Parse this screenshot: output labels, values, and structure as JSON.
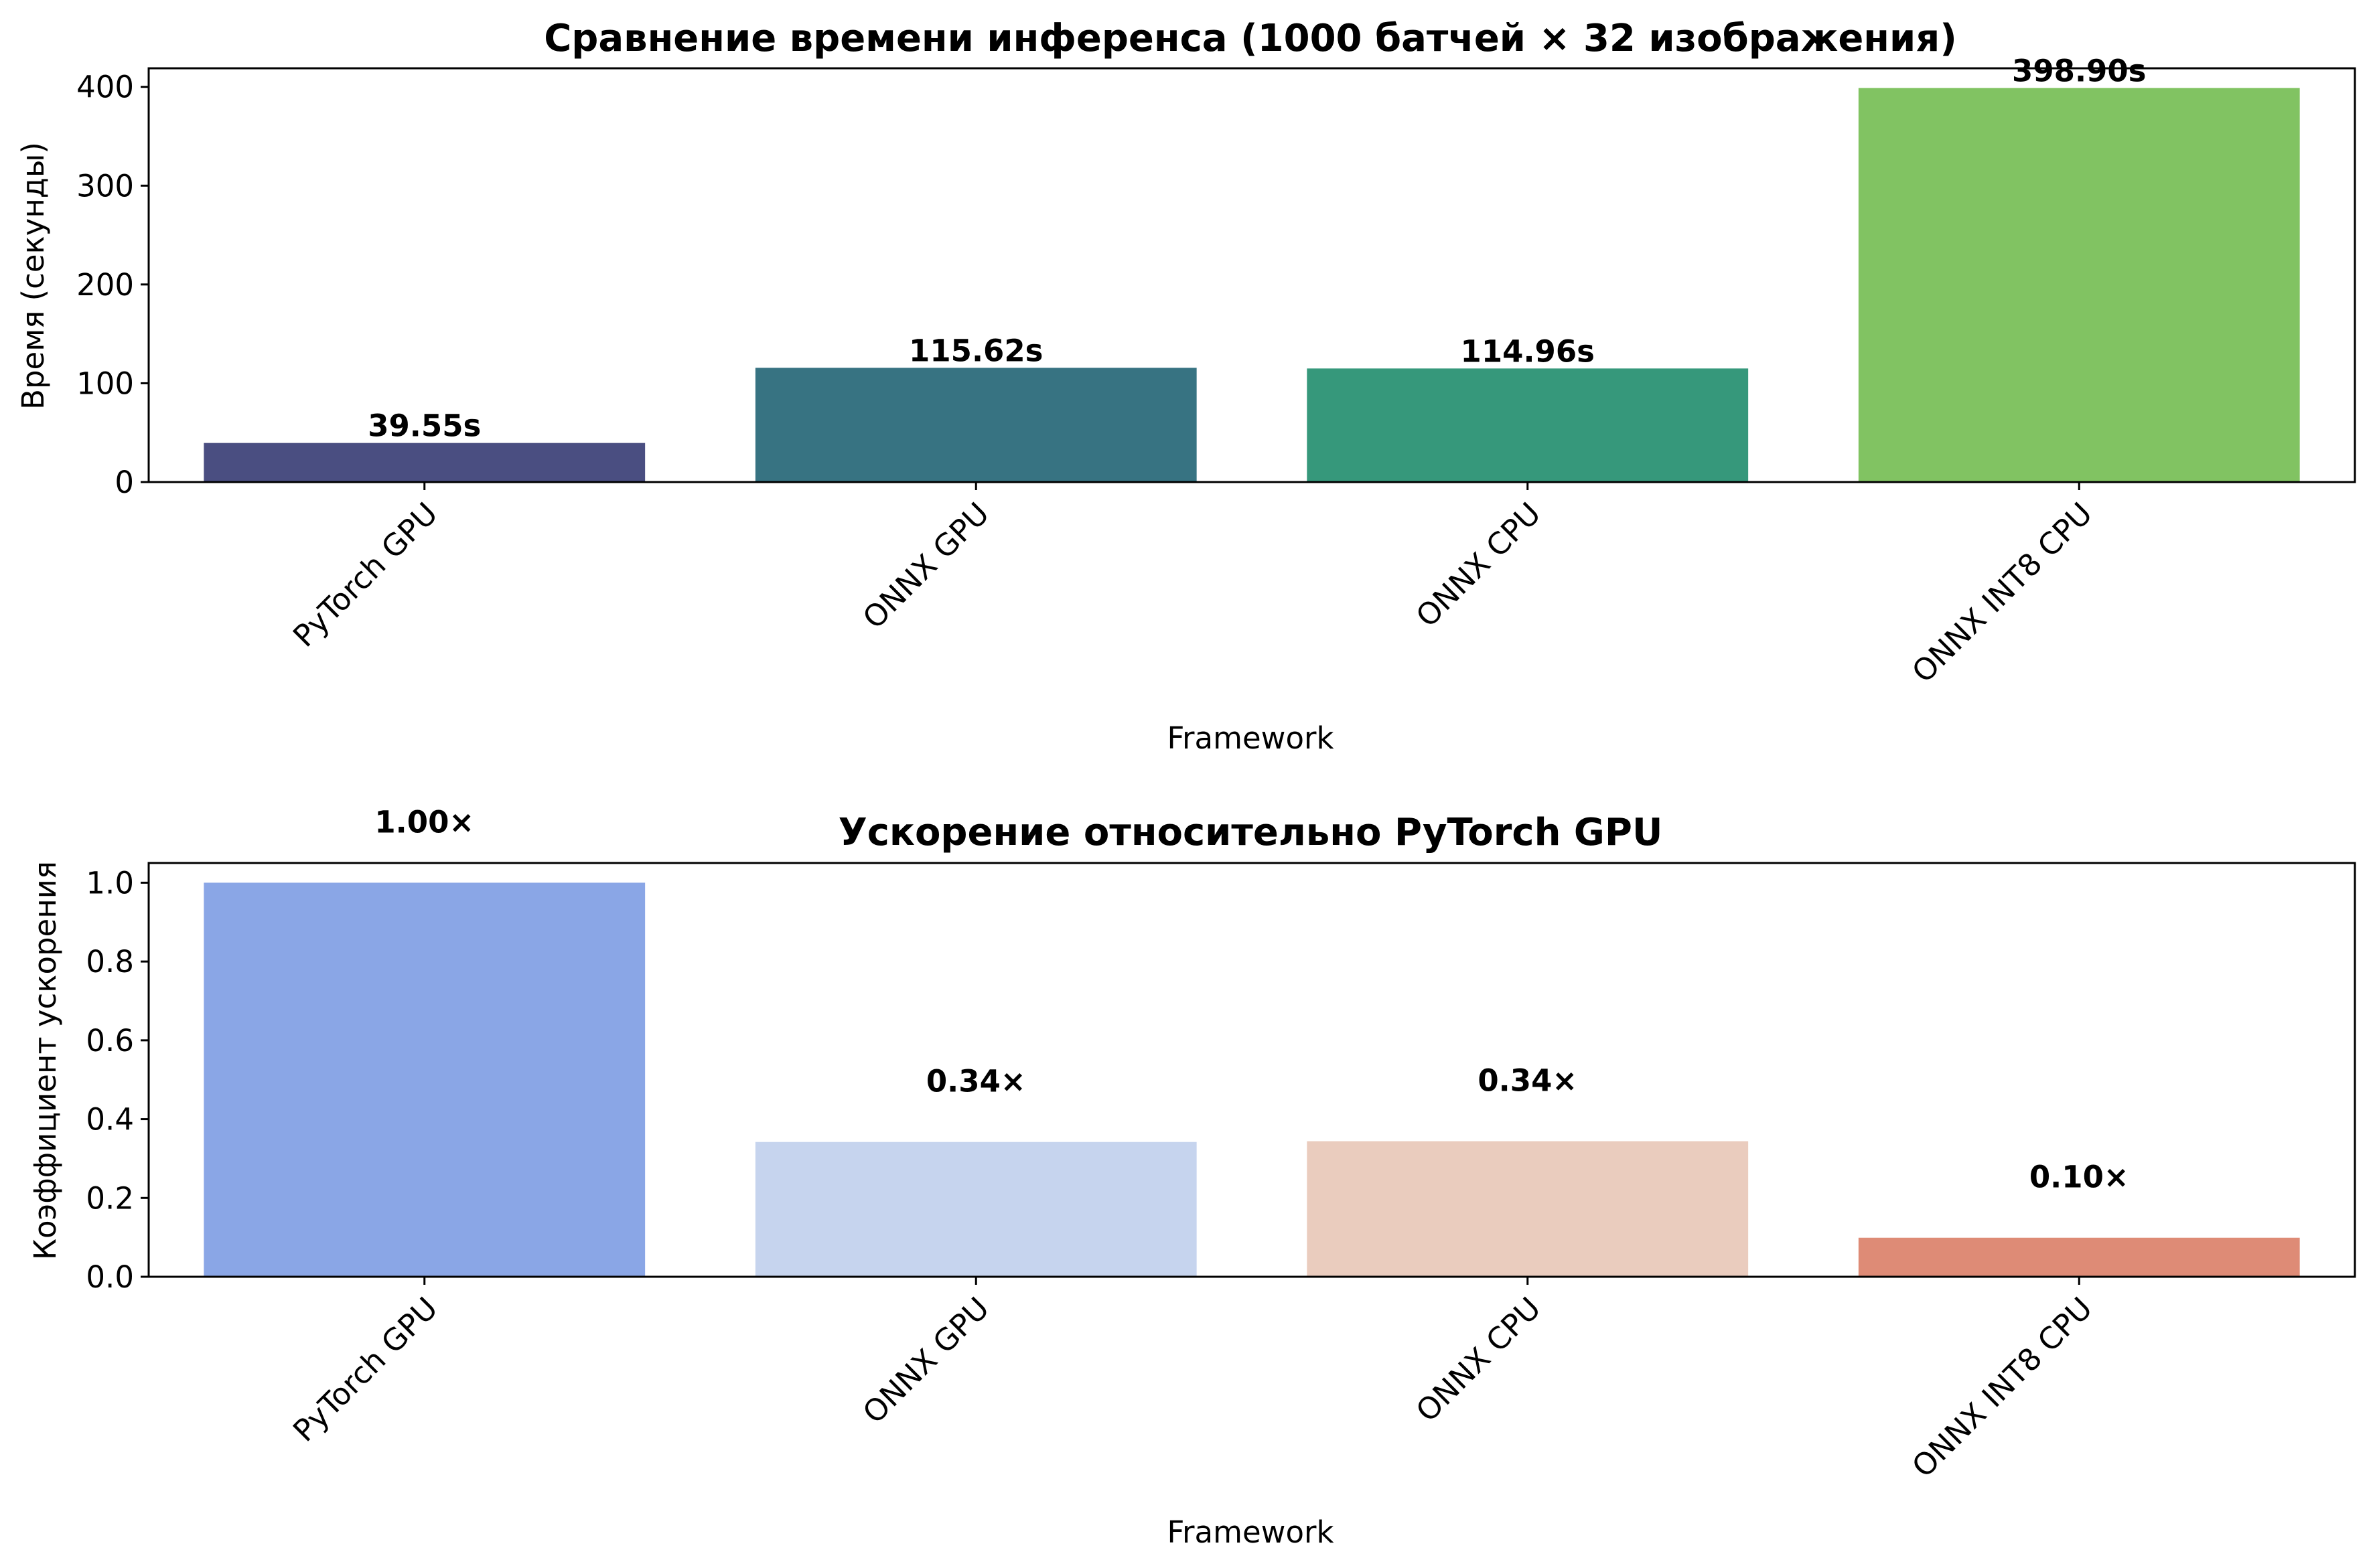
{
  "chart_data": [
    {
      "type": "bar",
      "title": "Сравнение времени инференса (1000 батчей × 32 изображения)",
      "xlabel": "Framework",
      "ylabel": "Время (секунды)",
      "categories": [
        "PyTorch GPU",
        "ONNX GPU",
        "ONNX CPU",
        "ONNX INT8 CPU"
      ],
      "values": [
        39.55,
        115.62,
        114.96,
        398.9
      ],
      "value_labels": [
        "39.55s",
        "115.62s",
        "114.96s",
        "398.90s"
      ],
      "colors": [
        "#4a4e81",
        "#377382",
        "#36987b",
        "#81c362"
      ],
      "ylim": [
        0,
        418.8
      ],
      "yticks": [
        0,
        100,
        200,
        300,
        400
      ],
      "ytick_labels": [
        "0",
        "100",
        "200",
        "300",
        "400"
      ],
      "grid": false
    },
    {
      "type": "bar",
      "title": "Ускорение относительно PyTorch GPU",
      "xlabel": "Framework",
      "ylabel": "Коэффициент ускорения",
      "categories": [
        "PyTorch GPU",
        "ONNX GPU",
        "ONNX CPU",
        "ONNX INT8 CPU"
      ],
      "values": [
        1.0,
        0.342,
        0.344,
        0.099
      ],
      "value_labels": [
        "1.00×",
        "0.34×",
        "0.34×",
        "0.10×"
      ],
      "colors": [
        "#8aa6e6",
        "#c6d4ee",
        "#eaccbe",
        "#de8b76"
      ],
      "ylim": [
        0,
        1.05
      ],
      "yticks": [
        0,
        0.2,
        0.4,
        0.6,
        0.8,
        1.0
      ],
      "ytick_labels": [
        "0.0",
        "0.2",
        "0.4",
        "0.6",
        "0.8",
        "1.0"
      ],
      "grid": false
    }
  ]
}
